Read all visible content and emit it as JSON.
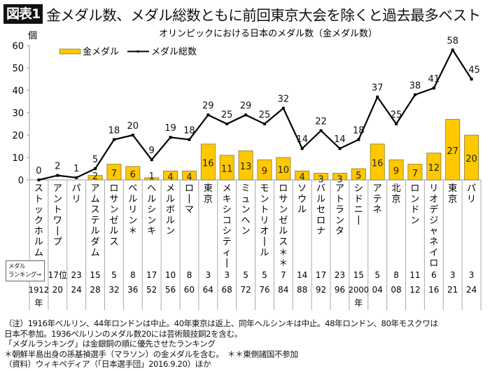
{
  "header": {
    "badge": "図表1",
    "title": "金メダル数、メダル総数ともに前回東京大会を除くと過去最多ベスト"
  },
  "colors": {
    "gold_fill": "#FFC800",
    "gold_border": "#8A7A2E",
    "line": "#000000",
    "grid_divider": "#AAAAAA"
  },
  "chart_data": {
    "type": "bar+line",
    "title": "オリンピックにおける日本のメダル数（金メダル数）",
    "ylabel": "個",
    "ylim": [
      0,
      60
    ],
    "yticks": [
      0,
      10,
      20,
      30,
      40,
      50,
      60
    ],
    "grid": false,
    "legend": {
      "placement": "top-left",
      "entries": [
        {
          "name": "金メダル",
          "kind": "bar"
        },
        {
          "name": "メダル総数",
          "kind": "line"
        }
      ]
    },
    "categories": [
      "ストックホルム",
      "アントワープ",
      "パリ",
      "アムステルダム",
      "ロサンゼルス",
      "ベルリン＊",
      "ヘルシンキ",
      "メルボルン",
      "ローマ",
      "東京",
      "メキシコシティー",
      "ミュンヘン",
      "モントリオール",
      "ロサンゼルス＊＊",
      "ソウル",
      "バルセロナ",
      "アトランタ",
      "シドニー",
      "アテネ",
      "北京",
      "ロンドン",
      "リオデジャネイロ",
      "東京",
      "パリ"
    ],
    "series": [
      {
        "name": "金メダル",
        "type": "bar",
        "values": [
          0,
          0,
          0,
          2,
          7,
          6,
          1,
          4,
          4,
          16,
          11,
          13,
          9,
          10,
          4,
          3,
          3,
          5,
          16,
          9,
          7,
          12,
          27,
          20
        ]
      },
      {
        "name": "メダル総数",
        "type": "line",
        "values": [
          0,
          2,
          1,
          5,
          18,
          20,
          9,
          19,
          18,
          29,
          25,
          29,
          25,
          32,
          14,
          22,
          14,
          18,
          37,
          25,
          38,
          41,
          58,
          45
        ]
      }
    ],
    "ranking_label": "メダル\nランキング→",
    "ranking": [
      "",
      "17位",
      "23",
      "15",
      "5",
      "8",
      "17",
      "10",
      "8",
      "3",
      "3",
      "5",
      "5",
      "7",
      "14",
      "17",
      "23",
      "15",
      "5",
      "8",
      "11",
      "6",
      "3",
      "3"
    ],
    "years": [
      "1912",
      "20",
      "24",
      "28",
      "32",
      "36",
      "52",
      "56",
      "60",
      "64",
      "68",
      "72",
      "76",
      "84",
      "88",
      "92",
      "96",
      "2000",
      "04",
      "08",
      "12",
      "16",
      "21",
      "24"
    ],
    "year_suffix": {
      "0": "年",
      "17": "年"
    }
  },
  "notes": [
    "（注）1916年ベルリン、44年ロンドンは中止。40年東京は返上、同年ヘルシンキは中止。48年ロンドン、80年モスクワは",
    "日本不参加。1936ベルリンのメダル数20には芸術競技銅2を含む。",
    "「メダルランキング」は金銀銅の順に優先させたランキング",
    "＊朝鮮半島出身の孫基禎選手（マラソン）の金メダルを含む。　＊＊東側諸国不参加",
    "（資料）ウィキペディア（「日本選手団」2016.9.20）ほか"
  ]
}
